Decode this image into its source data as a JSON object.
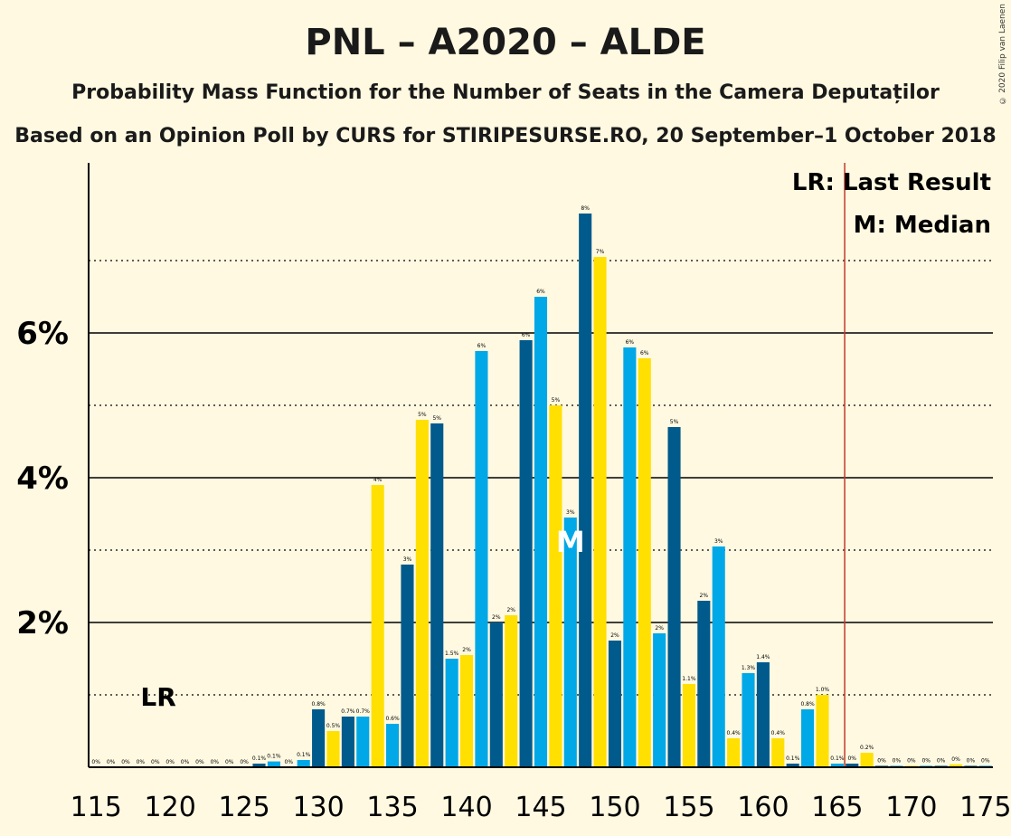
{
  "title": "PNL – A2020 – ALDE",
  "subtitle1": "Probability Mass Function for the Number of Seats in the Camera Deputaților",
  "subtitle2": "Based on an Opinion Poll by CURS for STIRIPESURSE.RO, 20 September–1 October 2018",
  "copyright": "© 2020 Filip van Laenen",
  "legend": {
    "lr": "LR: Last Result",
    "m": "M: Median"
  },
  "markers": {
    "lr_label": "LR",
    "median_label": "M"
  },
  "colors": {
    "light_blue": "#00A8E8",
    "dark_blue": "#005A8C",
    "yellow": "#FFE000",
    "lr_line": "#C0392B",
    "background": "#FFF9E1"
  },
  "chart_data": {
    "type": "bar",
    "x": [
      115,
      116,
      117,
      118,
      119,
      120,
      121,
      122,
      123,
      124,
      125,
      126,
      127,
      128,
      129,
      130,
      131,
      132,
      133,
      134,
      135,
      136,
      137,
      138,
      139,
      140,
      141,
      142,
      143,
      144,
      145,
      146,
      147,
      148,
      149,
      150,
      151,
      152,
      153,
      154,
      155,
      156,
      157,
      158,
      159,
      160,
      161,
      162,
      163,
      164,
      165,
      166,
      167,
      168,
      169,
      170,
      171,
      172,
      173,
      174,
      175
    ],
    "values": [
      0,
      0,
      0,
      0,
      0,
      0,
      0,
      0,
      0,
      0,
      0,
      0.05,
      0.08,
      0,
      0.1,
      0.8,
      0.5,
      0.7,
      0.7,
      3.9,
      0.6,
      2.8,
      4.8,
      4.75,
      1.5,
      1.55,
      5.75,
      2.0,
      2.1,
      5.9,
      6.5,
      5.0,
      3.45,
      7.65,
      7.05,
      1.75,
      5.8,
      5.65,
      1.85,
      4.7,
      1.15,
      2.3,
      3.05,
      0.4,
      1.3,
      1.45,
      0.4,
      0.05,
      0.8,
      1.0,
      0.05,
      0.05,
      0.2,
      0.02,
      0.02,
      0.02,
      0.02,
      0.02,
      0.04,
      0.02,
      0.02
    ],
    "value_labels": [
      "0%",
      "0%",
      "0%",
      "0%",
      "0%",
      "0%",
      "0%",
      "0%",
      "0%",
      "0%",
      "0%",
      "0.1%",
      "0.1%",
      "0%",
      "0.1%",
      "0.8%",
      "0.5%",
      "0.7%",
      "0.7%",
      "4%",
      "0.6%",
      "3%",
      "5%",
      "5%",
      "1.5%",
      "2%",
      "6%",
      "2%",
      "2%",
      "6%",
      "6%",
      "5%",
      "3%",
      "8%",
      "7%",
      "2%",
      "6%",
      "6%",
      "2%",
      "5%",
      "1.1%",
      "2%",
      "3%",
      "0.4%",
      "1.3%",
      "1.4%",
      "0.4%",
      "0.1%",
      "0.8%",
      "1.0%",
      "0.1%",
      "0%",
      "0.2%",
      "0%",
      "0%",
      "0%",
      "0%",
      "0%",
      "0%",
      "0%",
      "0%"
    ],
    "x_ticks": [
      "115",
      "120",
      "125",
      "130",
      "135",
      "140",
      "145",
      "150",
      "155",
      "160",
      "165",
      "170",
      "175"
    ],
    "y_ticks": [
      "2%",
      "4%",
      "6%"
    ],
    "y_tick_values": [
      2,
      4,
      6
    ],
    "ylim": [
      0,
      8.3
    ],
    "xlim": [
      114.5,
      175.5
    ],
    "last_result_seats": 166,
    "median_seats": 147,
    "lr_label_seats": 118,
    "grid": "solid at labelled ticks, dotted at odd percents",
    "legend_position": "top-right"
  }
}
